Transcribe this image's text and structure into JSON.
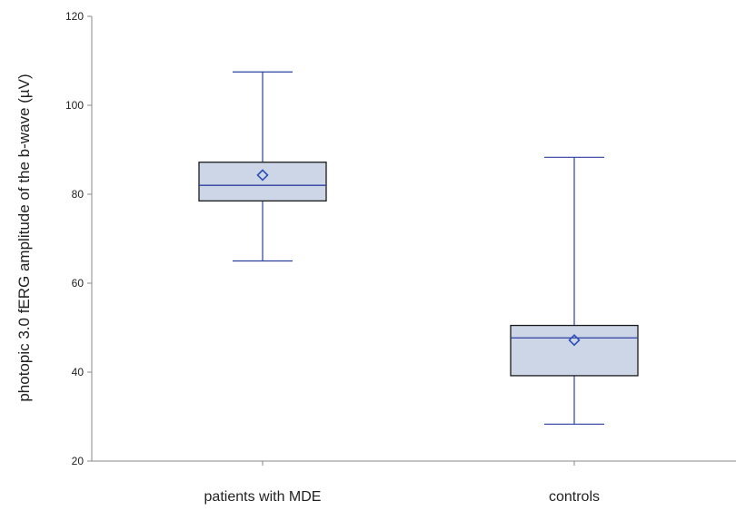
{
  "chart_data": {
    "type": "box",
    "title": "",
    "xlabel": "",
    "ylabel": "photopic 3.0 fERG amplitude of the b-wave (µV)",
    "ylim": [
      20,
      120
    ],
    "yticks": [
      20,
      40,
      60,
      80,
      100,
      120
    ],
    "grid": false,
    "categories": [
      "patients with MDE",
      "controls"
    ],
    "boxes": [
      {
        "category": "patients with MDE",
        "whisker_low": 65,
        "q1": 78.5,
        "median": 82,
        "q3": 87.2,
        "whisker_high": 107.5,
        "mean": 84.3
      },
      {
        "category": "controls",
        "whisker_low": 28.3,
        "q1": 39.2,
        "median": 47.7,
        "q3": 50.5,
        "whisker_high": 88.3,
        "mean": 47.2
      }
    ],
    "colors": {
      "box_fill": "#ccd6e6",
      "box_edge": "#1a1a1a",
      "whisker": "#2b3fa0",
      "mean_marker": "#2b4fb8"
    }
  }
}
